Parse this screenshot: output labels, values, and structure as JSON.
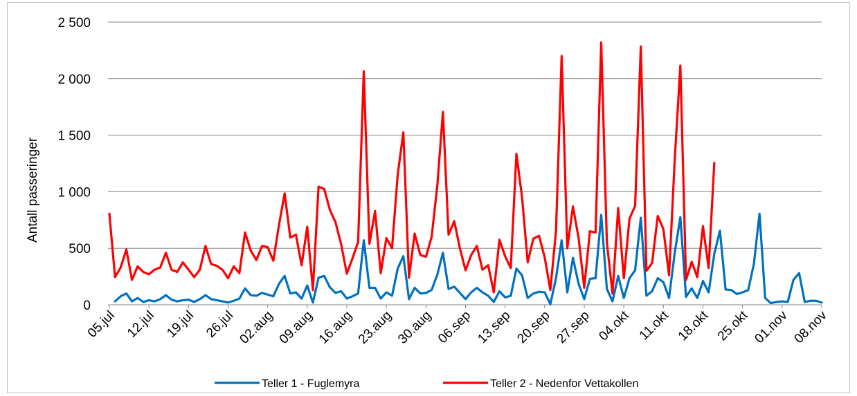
{
  "chart_data": {
    "type": "line",
    "title": "",
    "ylabel": "Antall passeringer",
    "xlabel": "",
    "ylim": [
      0,
      2500
    ],
    "yticks": [
      0,
      500,
      1000,
      1500,
      2000,
      2500
    ],
    "ytick_labels": [
      "0",
      "500",
      "1 000",
      "1 500",
      "2 000",
      "2 500"
    ],
    "x_start": "05.jul",
    "x_count": 127,
    "x_tick_labels": [
      "05.jul",
      "12.jul",
      "19.jul",
      "26.jul",
      "02.aug",
      "09.aug",
      "16.aug",
      "23.aug",
      "30.aug",
      "06.sep",
      "13.sep",
      "20.sep",
      "27.sep",
      "04.okt",
      "11.okt",
      "18.okt",
      "25.okt",
      "01.nov",
      "08.nov"
    ],
    "grid": true,
    "legend_position": "bottom",
    "series": [
      {
        "name": "Teller 1 - Fuglemyra",
        "color": "#0070c0",
        "start_index": 1,
        "values": [
          30,
          75,
          100,
          30,
          60,
          25,
          40,
          30,
          50,
          85,
          45,
          30,
          40,
          45,
          25,
          50,
          85,
          50,
          40,
          30,
          20,
          35,
          55,
          145,
          85,
          80,
          105,
          90,
          75,
          185,
          255,
          100,
          110,
          55,
          170,
          20,
          240,
          255,
          155,
          105,
          120,
          55,
          75,
          100,
          570,
          150,
          150,
          55,
          110,
          80,
          320,
          430,
          50,
          150,
          100,
          105,
          130,
          265,
          460,
          140,
          160,
          105,
          50,
          110,
          150,
          110,
          80,
          25,
          120,
          65,
          80,
          320,
          260,
          60,
          100,
          115,
          110,
          5,
          235,
          570,
          110,
          415,
          185,
          50,
          230,
          235,
          795,
          140,
          30,
          255,
          60,
          235,
          305,
          770,
          80,
          120,
          235,
          200,
          60,
          460,
          775,
          70,
          145,
          60,
          210,
          110,
          450,
          655,
          135,
          130,
          95,
          110,
          130,
          360,
          805,
          60,
          15,
          25,
          30,
          25,
          220,
          280,
          25,
          35,
          35,
          20
        ]
      },
      {
        "name": "Teller 2 - Nedenfor Vettakollen",
        "color": "#ff0000",
        "start_index": 0,
        "values": [
          805,
          245,
          330,
          490,
          220,
          340,
          290,
          270,
          310,
          330,
          460,
          310,
          290,
          375,
          310,
          245,
          310,
          520,
          360,
          345,
          310,
          235,
          340,
          280,
          640,
          480,
          395,
          520,
          510,
          390,
          705,
          985,
          595,
          620,
          350,
          690,
          130,
          1045,
          1025,
          840,
          730,
          535,
          275,
          410,
          555,
          2065,
          540,
          830,
          280,
          590,
          500,
          1150,
          1525,
          240,
          630,
          440,
          425,
          600,
          1050,
          1705,
          620,
          740,
          500,
          305,
          440,
          520,
          310,
          350,
          110,
          575,
          430,
          325,
          1335,
          950,
          375,
          585,
          610,
          420,
          130,
          650,
          2200,
          500,
          870,
          590,
          150,
          650,
          640,
          2320,
          550,
          100,
          855,
          235,
          760,
          875,
          2285,
          300,
          370,
          785,
          670,
          260,
          1280,
          2115,
          220,
          380,
          245,
          695,
          325,
          1255
        ]
      }
    ]
  }
}
